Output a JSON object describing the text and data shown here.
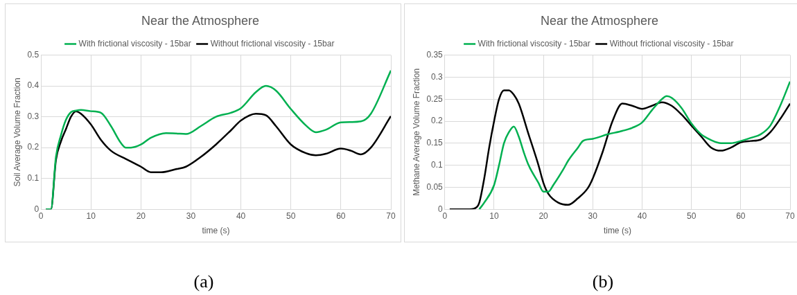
{
  "chart_data": [
    {
      "type": "line",
      "title": "Near the Atmosphere",
      "xlabel": "time (s)",
      "ylabel": "Soil Average Volume Fraction",
      "xlim": [
        0,
        70
      ],
      "xticks": [
        0,
        10,
        20,
        30,
        40,
        50,
        60,
        70
      ],
      "ylim": [
        0,
        0.5
      ],
      "yticks": [
        0,
        0.1,
        0.2,
        0.3,
        0.4,
        0.5
      ],
      "grid": true,
      "legend": "top",
      "marker": "none",
      "line_style": "solid",
      "annotations": [
        "(a)"
      ],
      "series": [
        {
          "name": "With frictional viscosity - 15bar",
          "color": "#00b050",
          "x": [
            1,
            2,
            3,
            4,
            5,
            6,
            7,
            8,
            10,
            12,
            14,
            16,
            17,
            18,
            20,
            22,
            25,
            27,
            29,
            32,
            35,
            38,
            40,
            43,
            45,
            47,
            50,
            53,
            55,
            57,
            60,
            62,
            64,
            66,
            70
          ],
          "values": [
            0,
            0,
            0.17,
            0.24,
            0.29,
            0.315,
            0.32,
            0.322,
            0.318,
            0.313,
            0.27,
            0.215,
            0.2,
            0.2,
            0.21,
            0.232,
            0.247,
            0.246,
            0.244,
            0.27,
            0.3,
            0.313,
            0.328,
            0.38,
            0.4,
            0.385,
            0.325,
            0.272,
            0.25,
            0.258,
            0.282,
            0.283,
            0.285,
            0.31,
            0.45
          ]
        },
        {
          "name": "Without frictional viscosity - 15bar",
          "color": "#000000",
          "x": [
            1,
            2,
            3,
            4,
            5,
            6,
            7,
            8,
            10,
            12,
            14,
            17,
            20,
            22,
            24,
            27,
            29,
            32,
            35,
            38,
            40,
            43,
            45,
            47,
            50,
            53,
            55,
            57,
            60,
            62,
            64,
            66,
            70
          ],
          "values": [
            0,
            0,
            0.16,
            0.22,
            0.26,
            0.3,
            0.318,
            0.31,
            0.275,
            0.225,
            0.19,
            0.163,
            0.138,
            0.12,
            0.12,
            0.13,
            0.138,
            0.17,
            0.21,
            0.256,
            0.288,
            0.31,
            0.305,
            0.27,
            0.21,
            0.182,
            0.175,
            0.18,
            0.197,
            0.19,
            0.178,
            0.2,
            0.302
          ]
        }
      ]
    },
    {
      "type": "line",
      "title": "Near the Atmosphere",
      "xlabel": "time (s)",
      "ylabel": "Methane Average Volume Fraction",
      "xlim": [
        0,
        70
      ],
      "xticks": [
        0,
        10,
        20,
        30,
        40,
        50,
        60,
        70
      ],
      "ylim": [
        0,
        0.35
      ],
      "yticks": [
        0,
        0.05,
        0.1,
        0.15,
        0.2,
        0.25,
        0.3,
        0.35
      ],
      "grid": true,
      "legend": "top",
      "marker": "none",
      "line_style": "solid",
      "annotations": [
        "(b)"
      ],
      "series": [
        {
          "name": "With frictional viscosity - 15bar",
          "color": "#00b050",
          "x": [
            7,
            8,
            10,
            11,
            12,
            13,
            14,
            15,
            16,
            17,
            19,
            20,
            21,
            22,
            24,
            25,
            27,
            28,
            30,
            33,
            36,
            38,
            40,
            42,
            44,
            45,
            46,
            48,
            50,
            52,
            54,
            56,
            58,
            60,
            62,
            64,
            66,
            68,
            70
          ],
          "values": [
            0,
            0.015,
            0.055,
            0.1,
            0.15,
            0.175,
            0.188,
            0.165,
            0.13,
            0.1,
            0.06,
            0.04,
            0.04,
            0.055,
            0.09,
            0.11,
            0.14,
            0.155,
            0.16,
            0.17,
            0.178,
            0.185,
            0.197,
            0.225,
            0.25,
            0.257,
            0.253,
            0.23,
            0.195,
            0.17,
            0.157,
            0.15,
            0.15,
            0.155,
            0.162,
            0.17,
            0.19,
            0.235,
            0.29
          ]
        },
        {
          "name": "Without frictional viscosity - 15bar",
          "color": "#000000",
          "x": [
            1,
            5,
            6.5,
            7,
            8,
            9,
            10,
            11,
            12,
            13,
            14,
            15,
            17,
            19,
            20,
            21,
            23,
            25,
            27,
            29,
            30,
            32,
            34,
            36,
            38,
            40,
            42,
            44,
            46,
            48,
            50,
            52,
            54,
            56,
            58,
            60,
            62,
            64,
            66,
            68,
            70
          ],
          "values": [
            0,
            0,
            0.005,
            0.015,
            0.07,
            0.14,
            0.2,
            0.25,
            0.27,
            0.27,
            0.26,
            0.24,
            0.17,
            0.1,
            0.06,
            0.035,
            0.015,
            0.01,
            0.025,
            0.048,
            0.07,
            0.13,
            0.2,
            0.24,
            0.235,
            0.228,
            0.235,
            0.243,
            0.235,
            0.215,
            0.19,
            0.165,
            0.14,
            0.133,
            0.14,
            0.152,
            0.155,
            0.158,
            0.175,
            0.205,
            0.24
          ]
        }
      ]
    }
  ]
}
